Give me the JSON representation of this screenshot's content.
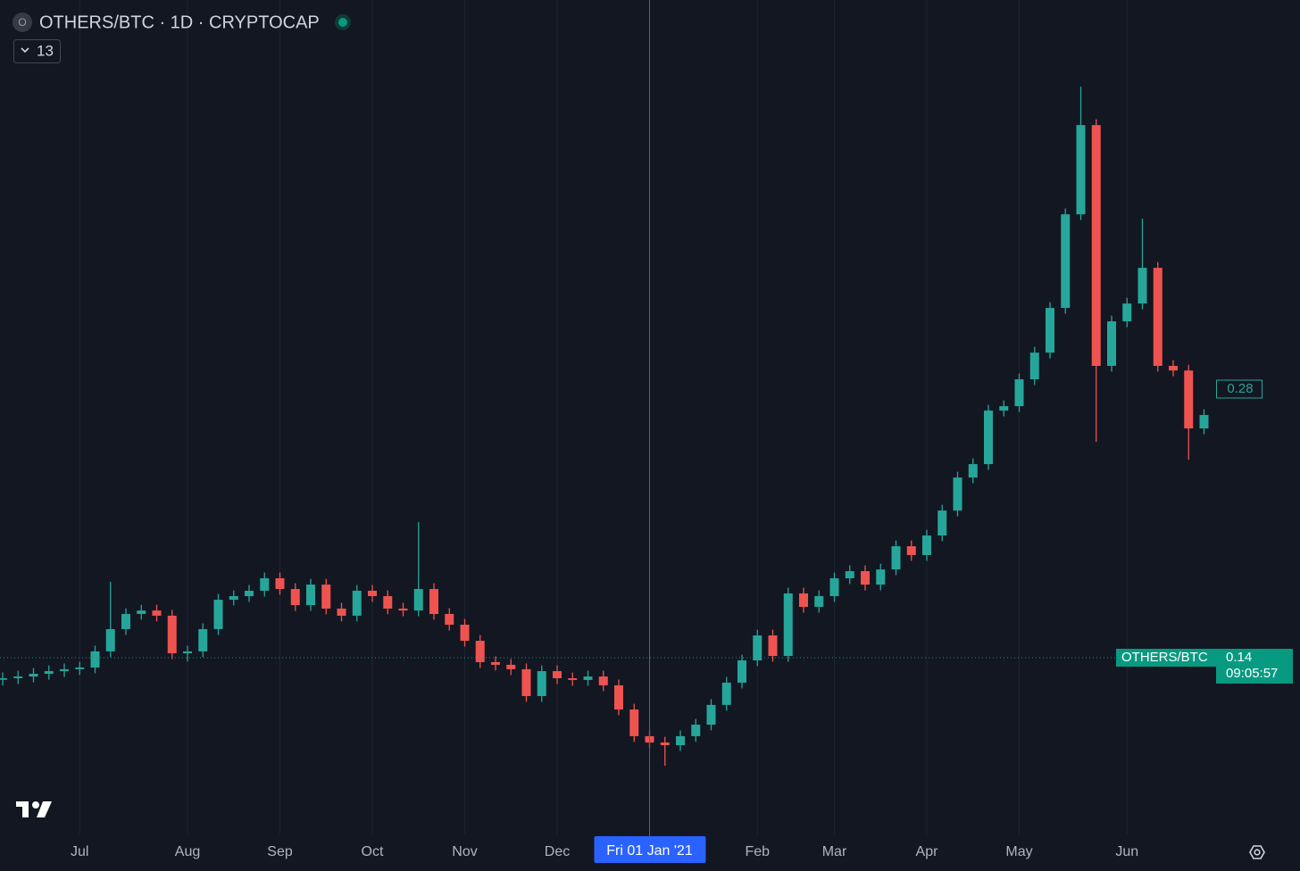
{
  "chart_data": {
    "type": "candlestick",
    "title": "OTHERS/BTC · 1D · CRYPTOCAP",
    "symbol_icon": "O",
    "indicator_count": 13,
    "up_color": "#26a69a",
    "down_color": "#ef5350",
    "ylim": [
      0.0479,
      0.4828
    ],
    "grid": true,
    "crosshair_category": "Fri 01 Jan '21",
    "price_line": {
      "value": 0.14,
      "name": "OTHERS/BTC",
      "countdown": "09:05:57",
      "color": "#089981"
    },
    "marker": {
      "value": 0.28,
      "color": "#26a69a"
    },
    "categories": [
      null,
      null,
      null,
      null,
      null,
      "Jul",
      null,
      null,
      null,
      null,
      null,
      null,
      "Aug",
      null,
      null,
      null,
      null,
      null,
      "Sep",
      null,
      null,
      null,
      null,
      null,
      "Oct",
      null,
      null,
      null,
      null,
      null,
      "Nov",
      null,
      null,
      null,
      null,
      null,
      "Dec",
      null,
      null,
      null,
      null,
      null,
      "Fri 01 Jan '21",
      null,
      null,
      null,
      null,
      null,
      null,
      "Feb",
      null,
      null,
      null,
      null,
      "Mar",
      null,
      null,
      null,
      null,
      null,
      "Apr",
      null,
      null,
      null,
      null,
      null,
      "May",
      null,
      null,
      null,
      null,
      null,
      null,
      "Jun",
      null,
      null,
      null,
      null,
      null
    ],
    "open": [
      0.1285,
      0.1293,
      0.1302,
      0.1316,
      0.133,
      0.134,
      0.1349,
      0.1433,
      0.1549,
      0.1628,
      0.1646,
      0.1619,
      0.1423,
      0.1433,
      0.1549,
      0.1702,
      0.1721,
      0.1749,
      0.1814,
      0.1758,
      0.1674,
      0.1781,
      0.1656,
      0.1619,
      0.1749,
      0.1721,
      0.1656,
      0.1646,
      0.1758,
      0.1628,
      0.1572,
      0.1488,
      0.1377,
      0.1363,
      0.134,
      0.12,
      0.133,
      0.1293,
      0.1284,
      0.1302,
      0.1256,
      0.113,
      0.0991,
      0.0958,
      0.0944,
      0.0991,
      0.1051,
      0.1154,
      0.127,
      0.1386,
      0.1516,
      0.1409,
      0.1735,
      0.1665,
      0.1721,
      0.1814,
      0.1851,
      0.1781,
      0.186,
      0.1981,
      0.1935,
      0.2037,
      0.2167,
      0.2339,
      0.2409,
      0.2688,
      0.2711,
      0.2851,
      0.299,
      0.3223,
      0.3711,
      0.4176,
      0.2921,
      0.3153,
      0.3246,
      0.3432,
      0.2921,
      0.2897,
      0.2595
    ],
    "high": [
      0.1323,
      0.1332,
      0.1346,
      0.136,
      0.137,
      0.1379,
      0.1463,
      0.1795,
      0.1658,
      0.1676,
      0.1676,
      0.1649,
      0.1463,
      0.1579,
      0.1732,
      0.1751,
      0.1779,
      0.1844,
      0.1844,
      0.1788,
      0.1811,
      0.1811,
      0.1686,
      0.1779,
      0.1779,
      0.1751,
      0.1686,
      0.2107,
      0.1788,
      0.1658,
      0.1602,
      0.1518,
      0.1407,
      0.1393,
      0.137,
      0.136,
      0.136,
      0.1323,
      0.1332,
      0.1332,
      0.1286,
      0.116,
      0.1021,
      0.0988,
      0.1021,
      0.1081,
      0.1184,
      0.13,
      0.1416,
      0.1546,
      0.1546,
      0.1765,
      0.1765,
      0.1751,
      0.1844,
      0.1881,
      0.1881,
      0.189,
      0.2011,
      0.2011,
      0.2067,
      0.2197,
      0.2369,
      0.2439,
      0.2718,
      0.2741,
      0.2881,
      0.302,
      0.3253,
      0.3741,
      0.4376,
      0.4206,
      0.3183,
      0.3276,
      0.3688,
      0.3462,
      0.2951,
      0.2927,
      0.2695
    ],
    "low": [
      0.1255,
      0.1263,
      0.1272,
      0.1286,
      0.13,
      0.131,
      0.1319,
      0.1403,
      0.1519,
      0.1598,
      0.1589,
      0.1393,
      0.138,
      0.1403,
      0.1519,
      0.1672,
      0.1691,
      0.1719,
      0.1728,
      0.1644,
      0.1644,
      0.1626,
      0.1589,
      0.1589,
      0.1691,
      0.1626,
      0.1616,
      0.1616,
      0.1598,
      0.1542,
      0.1458,
      0.1347,
      0.1333,
      0.131,
      0.117,
      0.117,
      0.1263,
      0.1254,
      0.1254,
      0.1226,
      0.11,
      0.0961,
      0.0928,
      0.0837,
      0.0914,
      0.0961,
      0.1021,
      0.1124,
      0.124,
      0.1356,
      0.1379,
      0.1379,
      0.1635,
      0.1635,
      0.1691,
      0.1784,
      0.1751,
      0.1751,
      0.183,
      0.1905,
      0.1905,
      0.2007,
      0.2137,
      0.2309,
      0.2379,
      0.2658,
      0.2681,
      0.2821,
      0.296,
      0.3193,
      0.3681,
      0.2525,
      0.2891,
      0.3123,
      0.3216,
      0.2891,
      0.2867,
      0.2432,
      0.2565
    ],
    "close": [
      0.1293,
      0.1302,
      0.1316,
      0.133,
      0.134,
      0.1349,
      0.1433,
      0.1549,
      0.1628,
      0.1646,
      0.1619,
      0.1423,
      0.1433,
      0.1549,
      0.1702,
      0.1721,
      0.1749,
      0.1814,
      0.1758,
      0.1674,
      0.1781,
      0.1656,
      0.1619,
      0.1749,
      0.1721,
      0.1656,
      0.1646,
      0.1758,
      0.1628,
      0.1572,
      0.1488,
      0.1377,
      0.1363,
      0.134,
      0.12,
      0.133,
      0.1293,
      0.1284,
      0.1302,
      0.1256,
      0.113,
      0.0991,
      0.0958,
      0.0944,
      0.0991,
      0.1051,
      0.1154,
      0.127,
      0.1386,
      0.1516,
      0.1409,
      0.1735,
      0.1665,
      0.1721,
      0.1814,
      0.1851,
      0.1781,
      0.186,
      0.1981,
      0.1935,
      0.2037,
      0.2167,
      0.2339,
      0.2409,
      0.2688,
      0.2711,
      0.2851,
      0.299,
      0.3223,
      0.3711,
      0.4176,
      0.2921,
      0.3153,
      0.3246,
      0.3432,
      0.2921,
      0.2897,
      0.2595,
      0.2665
    ]
  }
}
